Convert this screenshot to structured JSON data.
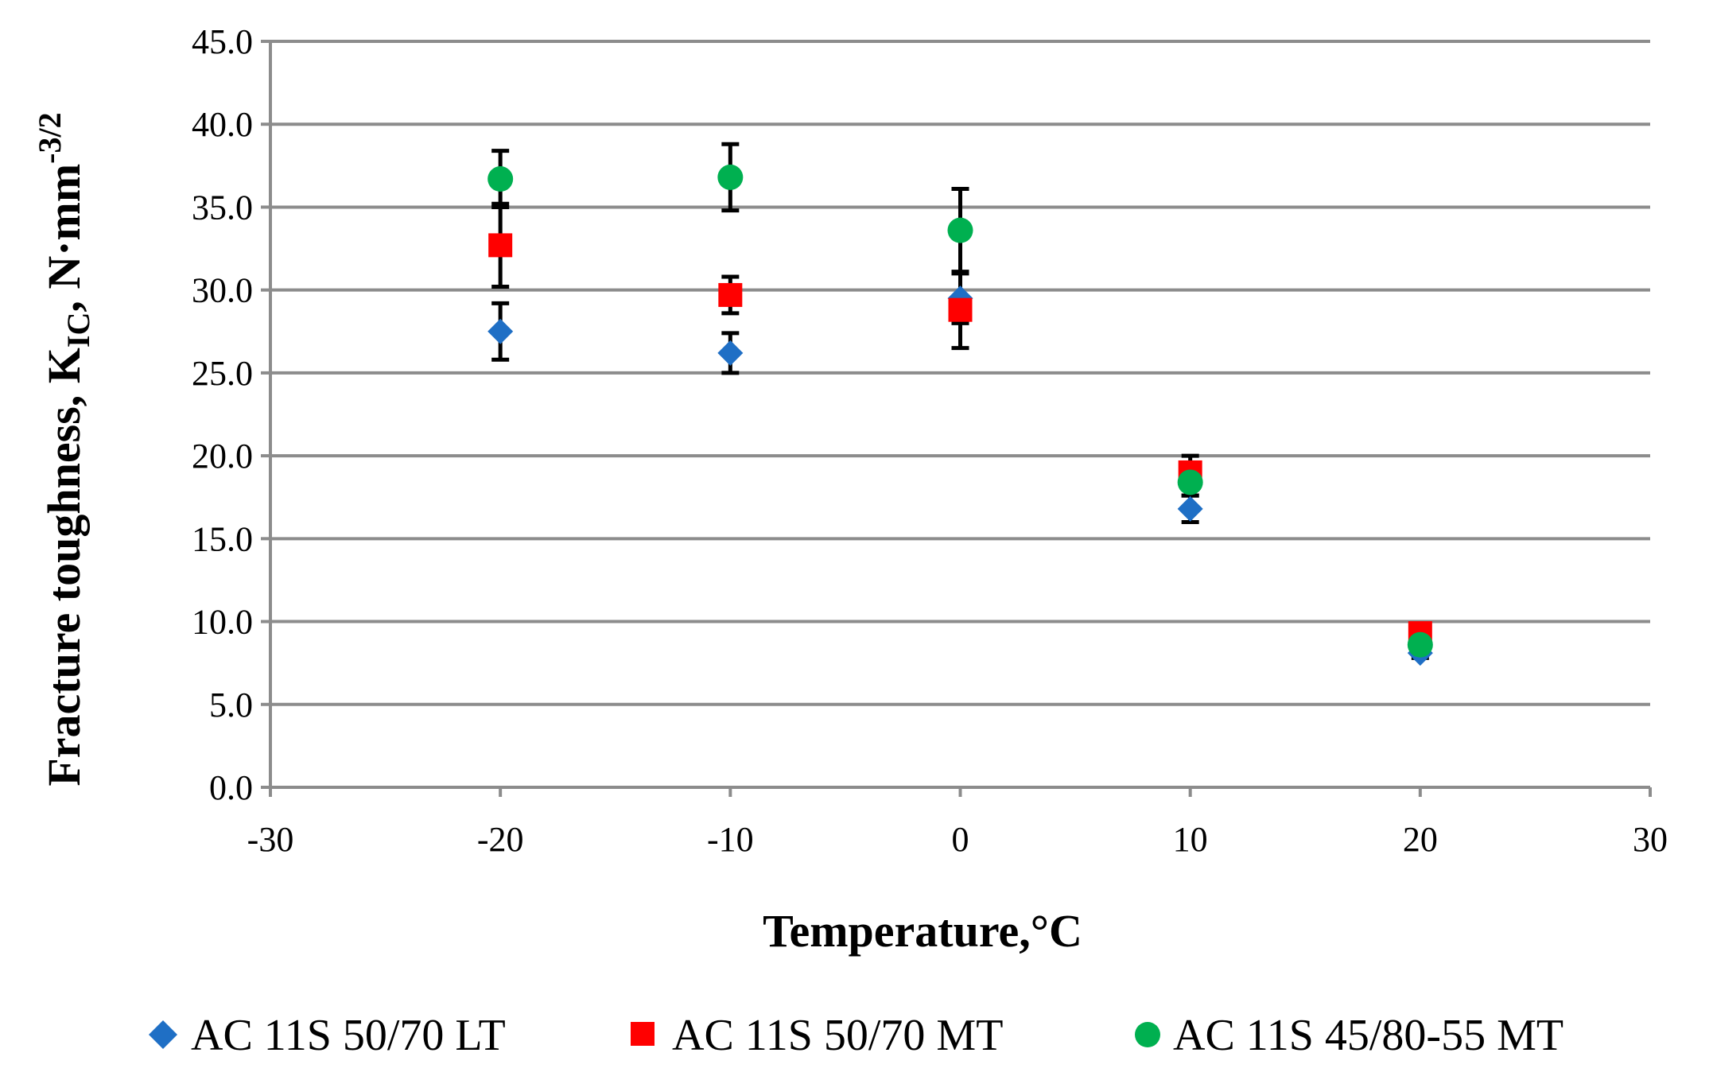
{
  "chart_data": {
    "type": "scatter",
    "title": "",
    "xlabel": "Temperature,°C",
    "ylabel_main": "Fracture toughness, K",
    "ylabel_sub": "IC",
    "ylabel_unit": ", N·mm",
    "ylabel_sup": "-3/2",
    "xlim": [
      -30,
      30
    ],
    "ylim": [
      0,
      45
    ],
    "xticks": [
      -30,
      -20,
      -10,
      0,
      10,
      20,
      30
    ],
    "yticks": [
      0,
      5,
      10,
      15,
      20,
      25,
      30,
      35,
      40,
      45
    ],
    "xtick_labels": [
      "-30",
      "-20",
      "-10",
      "0",
      "10",
      "20",
      "30"
    ],
    "ytick_labels": [
      "0.0",
      "5.0",
      "10.0",
      "15.0",
      "20.0",
      "25.0",
      "30.0",
      "35.0",
      "40.0",
      "45.0"
    ],
    "grid": "horizontal",
    "legend_position": "bottom",
    "series": [
      {
        "name": "AC 11S 50/70 LT",
        "marker": "diamond",
        "color": "#1f6fc5",
        "x": [
          -20,
          -10,
          0,
          10,
          20
        ],
        "y": [
          27.5,
          26.2,
          29.5,
          16.8,
          8.1
        ],
        "err": [
          1.7,
          1.2,
          1.5,
          0.8,
          0.3
        ]
      },
      {
        "name": "AC 11S 50/70 MT",
        "marker": "square",
        "color": "#ff0000",
        "x": [
          -20,
          -10,
          0,
          10,
          20
        ],
        "y": [
          32.7,
          29.7,
          28.8,
          19.0,
          9.3
        ],
        "err": [
          2.5,
          1.1,
          2.3,
          1.0,
          0.3
        ]
      },
      {
        "name": "AC 11S 45/80-55 MT",
        "marker": "circle",
        "color": "#00b050",
        "x": [
          -20,
          -10,
          0,
          10,
          20
        ],
        "y": [
          36.7,
          36.8,
          33.6,
          18.4,
          8.6
        ],
        "err": [
          1.7,
          2.0,
          2.5,
          0.8,
          0.3
        ]
      }
    ]
  }
}
